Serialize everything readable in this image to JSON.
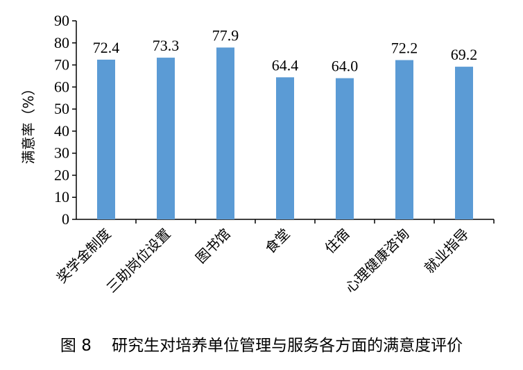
{
  "caption": "图 8    研究生对培养单位管理与服务各方面的满意度评价",
  "colors": {
    "bar": "#5b9bd5",
    "axis": "#000000"
  },
  "chart_data": {
    "type": "bar",
    "title": "",
    "xlabel": "",
    "ylabel": "满意率（%）",
    "ylim": [
      0,
      90
    ],
    "yticks": [
      0,
      10,
      20,
      30,
      40,
      50,
      60,
      70,
      80,
      90
    ],
    "grid": false,
    "categories": [
      "奖学金制度",
      "三助岗位设置",
      "图书馆",
      "食堂",
      "住宿",
      "心理健康咨询",
      "就业指导"
    ],
    "values": [
      72.4,
      73.3,
      77.9,
      64.4,
      64.0,
      72.2,
      69.2
    ],
    "value_labels": [
      "72.4",
      "73.3",
      "77.9",
      "64.4",
      "64.0",
      "72.2",
      "69.2"
    ]
  }
}
